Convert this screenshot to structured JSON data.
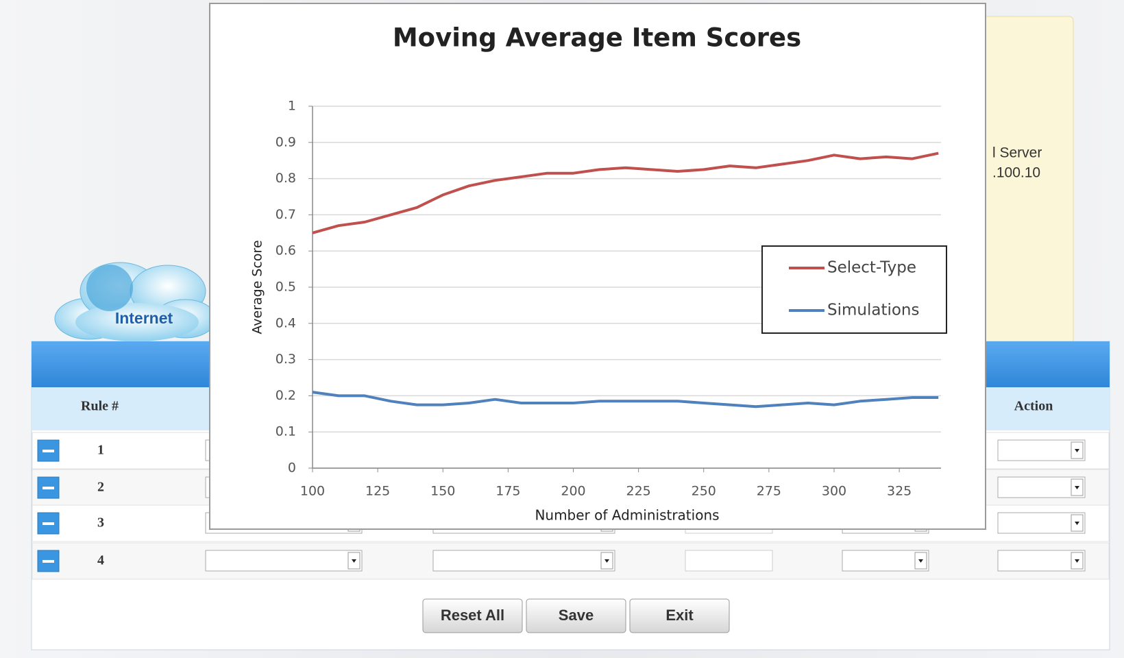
{
  "chart_data": {
    "type": "line",
    "title": "Moving Average Item Scores",
    "x_label": "Number of Administrations",
    "y_label": "Average Score",
    "x": [
      100,
      110,
      120,
      130,
      140,
      150,
      160,
      170,
      180,
      190,
      200,
      210,
      220,
      230,
      240,
      250,
      260,
      270,
      280,
      290,
      300,
      310,
      320,
      330,
      340
    ],
    "series": [
      {
        "name": "Select-Type",
        "color": "#c0504d",
        "values": [
          0.65,
          0.67,
          0.68,
          0.7,
          0.72,
          0.755,
          0.78,
          0.795,
          0.805,
          0.815,
          0.815,
          0.825,
          0.83,
          0.825,
          0.82,
          0.825,
          0.835,
          0.83,
          0.84,
          0.85,
          0.865,
          0.855,
          0.86,
          0.855,
          0.87
        ]
      },
      {
        "name": "Simulations",
        "color": "#4f81bd",
        "values": [
          0.21,
          0.2,
          0.2,
          0.185,
          0.175,
          0.175,
          0.18,
          0.19,
          0.18,
          0.18,
          0.18,
          0.185,
          0.185,
          0.185,
          0.185,
          0.18,
          0.175,
          0.17,
          0.175,
          0.18,
          0.175,
          0.185,
          0.19,
          0.195,
          0.195
        ]
      }
    ],
    "xlim": [
      100,
      341
    ],
    "xticks": [
      100,
      125,
      150,
      175,
      200,
      225,
      250,
      275,
      300,
      325
    ],
    "ylim": [
      0,
      1
    ],
    "yticks": [
      0,
      0.1,
      0.2,
      0.3,
      0.4,
      0.5,
      0.6,
      0.7,
      0.8,
      0.9,
      1
    ],
    "grid": true,
    "legend": "right"
  },
  "ui": {
    "cloud_label": "Internet",
    "server_name": "l Server",
    "server_ip": ".100.10",
    "table": {
      "rule_header": "Rule #",
      "action_header": "Action",
      "rows": [
        1,
        2,
        3,
        4
      ]
    },
    "buttons": [
      "Reset All",
      "Save",
      "Exit"
    ]
  }
}
